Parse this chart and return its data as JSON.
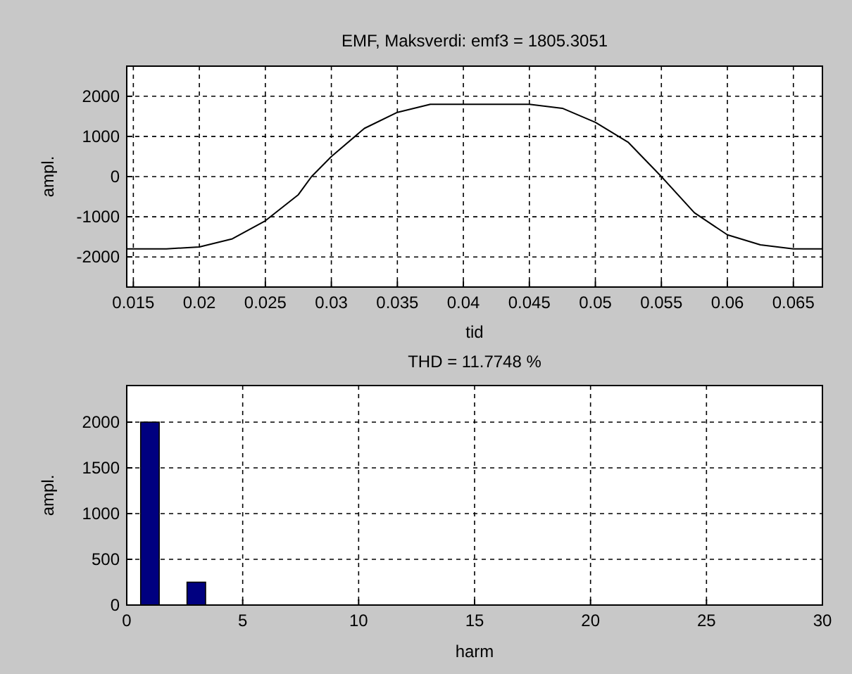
{
  "chart_data": [
    {
      "type": "line",
      "title": "EMF, Maksverdi: emf3 = 1805.3051",
      "xlabel": "tid",
      "ylabel": "ampl.",
      "xlim": [
        0.0145,
        0.0672
      ],
      "ylim": [
        -2750,
        2750
      ],
      "xticks": [
        0.015,
        0.02,
        0.025,
        0.03,
        0.035,
        0.04,
        0.045,
        0.05,
        0.055,
        0.06,
        0.065
      ],
      "yticks": [
        -2000,
        -1000,
        0,
        1000,
        2000
      ],
      "grid": true,
      "series": [
        {
          "color": "#000000",
          "x": [
            0.0145,
            0.015,
            0.0175,
            0.02,
            0.0225,
            0.025,
            0.0275,
            0.0285,
            0.03,
            0.0325,
            0.035,
            0.0375,
            0.04,
            0.0425,
            0.045,
            0.0475,
            0.05,
            0.0525,
            0.055,
            0.0575,
            0.06,
            0.0625,
            0.065,
            0.0672
          ],
          "values": [
            -1800,
            -1800,
            -1800,
            -1750,
            -1550,
            -1100,
            -450,
            0,
            500,
            1200,
            1600,
            1800,
            1800,
            1800,
            1800,
            1700,
            1350,
            850,
            0,
            -900,
            -1450,
            -1700,
            -1800,
            -1800
          ]
        }
      ]
    },
    {
      "type": "bar",
      "title": "THD = 11.7748 %",
      "xlabel": "harm",
      "ylabel": "ampl.",
      "xlim": [
        0,
        30
      ],
      "ylim": [
        0,
        2400
      ],
      "xticks": [
        0,
        5,
        10,
        15,
        20,
        25,
        30
      ],
      "yticks": [
        0,
        500,
        1000,
        1500,
        2000
      ],
      "grid": true,
      "x": [
        1,
        2,
        3,
        4,
        5,
        6,
        7,
        8,
        9,
        10,
        11,
        12,
        13,
        14,
        15,
        16,
        17,
        18,
        19,
        20,
        21,
        22,
        23,
        24,
        25,
        26,
        27,
        28,
        29,
        30
      ],
      "series": [
        {
          "color": "#000080",
          "values": [
            2000,
            0,
            250,
            0,
            0,
            0,
            0,
            0,
            0,
            0,
            0,
            0,
            0,
            0,
            0,
            0,
            0,
            0,
            0,
            0,
            0,
            0,
            0,
            0,
            0,
            0,
            0,
            0,
            0,
            0
          ]
        }
      ]
    }
  ]
}
